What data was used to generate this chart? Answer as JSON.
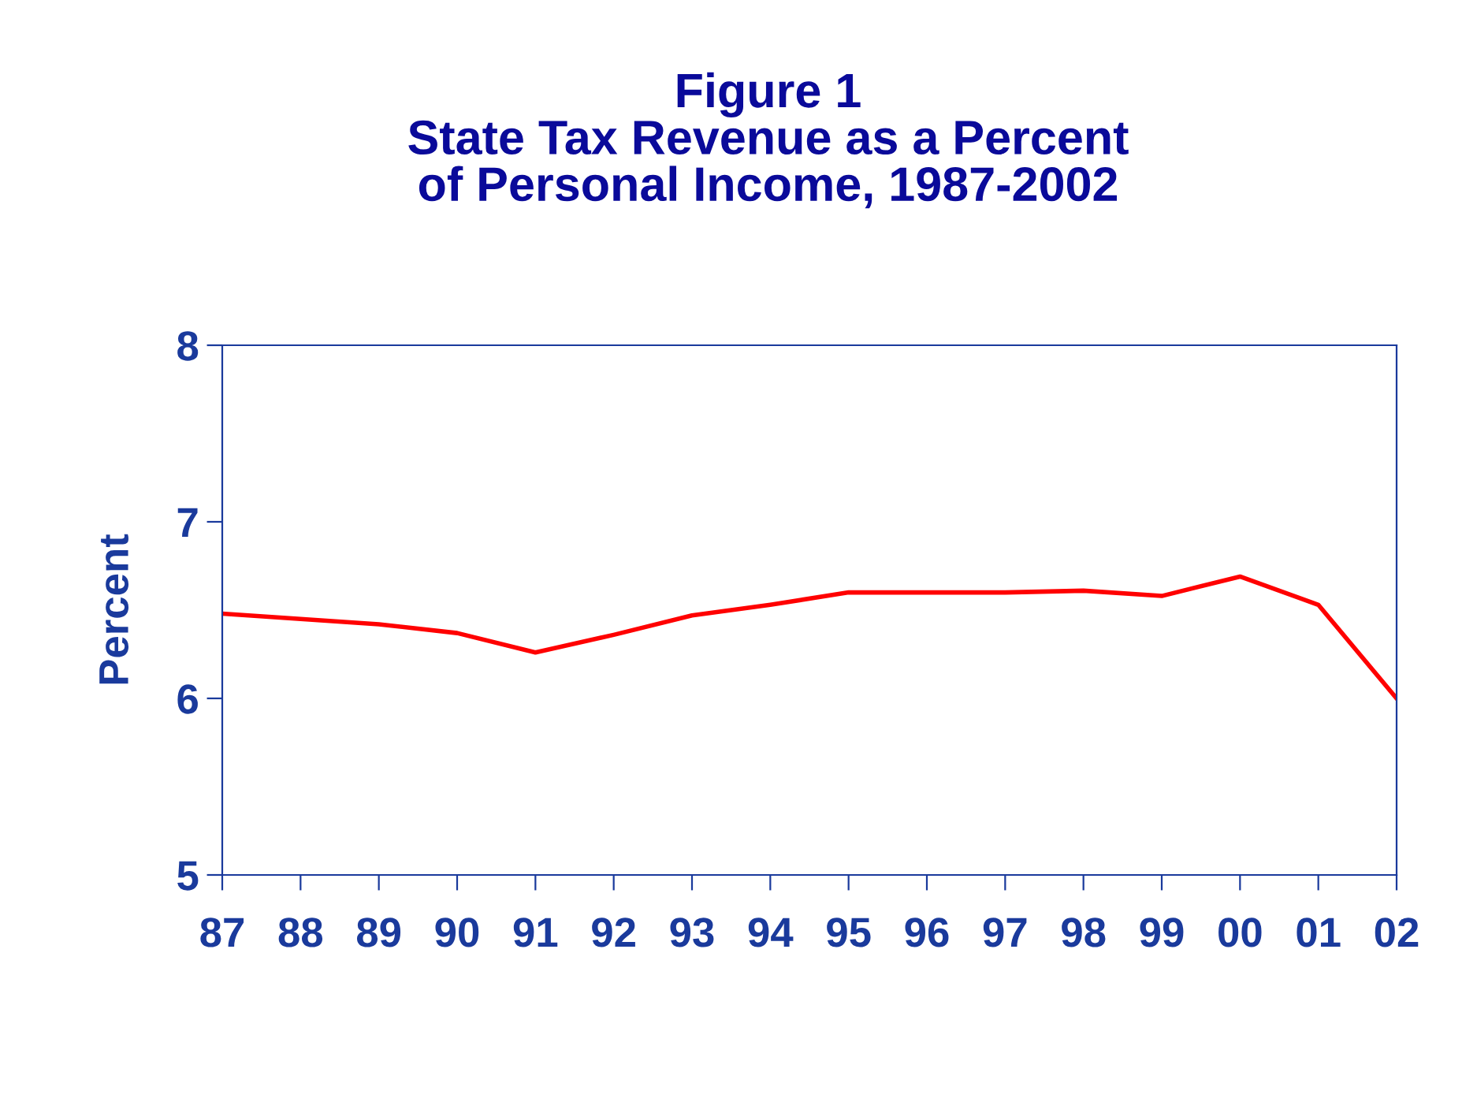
{
  "chart_data": {
    "type": "line",
    "title": "Figure 1\nState Tax Revenue as a Percent\nof Personal Income, 1987-2002",
    "ylabel": "Percent",
    "categories": [
      "87",
      "88",
      "89",
      "90",
      "91",
      "92",
      "93",
      "94",
      "95",
      "96",
      "97",
      "98",
      "99",
      "00",
      "01",
      "02"
    ],
    "series": [
      {
        "color": "#ff0000",
        "values": [
          6.48,
          6.45,
          6.42,
          6.37,
          6.26,
          6.36,
          6.47,
          6.53,
          6.6,
          6.6,
          6.6,
          6.61,
          6.58,
          6.69,
          6.53,
          6.0
        ]
      }
    ],
    "ylim": [
      5,
      8
    ],
    "yticks": [
      5,
      6,
      7,
      8
    ],
    "grid": false,
    "marker": "none",
    "line_style": "solid"
  }
}
